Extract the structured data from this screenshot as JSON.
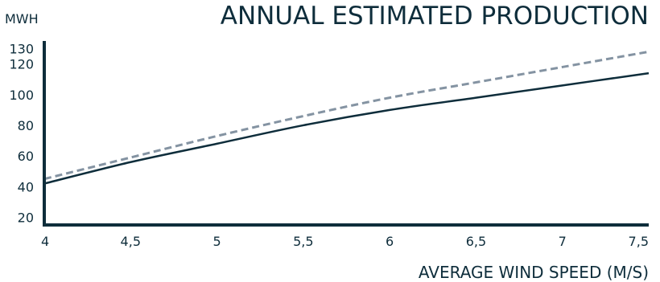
{
  "chart_data": {
    "type": "line",
    "title": "ANNUAL ESTIMATED PRODUCTION",
    "xlabel": "AVERAGE WIND SPEED (M/S)",
    "ylabel": "MWH",
    "xlim": [
      4,
      7.5
    ],
    "ylim": [
      15,
      135
    ],
    "x_ticks": [
      "4",
      "4,5",
      "5",
      "5,5",
      "6",
      "6,5",
      "7",
      "7,5"
    ],
    "y_ticks": [
      "20",
      "40",
      "60",
      "80",
      "100",
      "120",
      "130"
    ],
    "x": [
      4,
      4.5,
      5,
      5.5,
      6,
      6.5,
      7,
      7.5
    ],
    "series": [
      {
        "values": [
          42,
          56,
          68,
          80,
          90,
          98,
          106,
          114
        ],
        "style": "solid",
        "color": "#0e2d3b"
      },
      {
        "values": [
          45,
          59,
          73,
          86,
          98,
          108,
          118,
          128
        ],
        "style": "dashed",
        "color": "#8493a2"
      }
    ],
    "grid": false,
    "legend": "none"
  },
  "colors": {
    "text": "#0e2d3b",
    "axis": "#0e2d3b"
  }
}
